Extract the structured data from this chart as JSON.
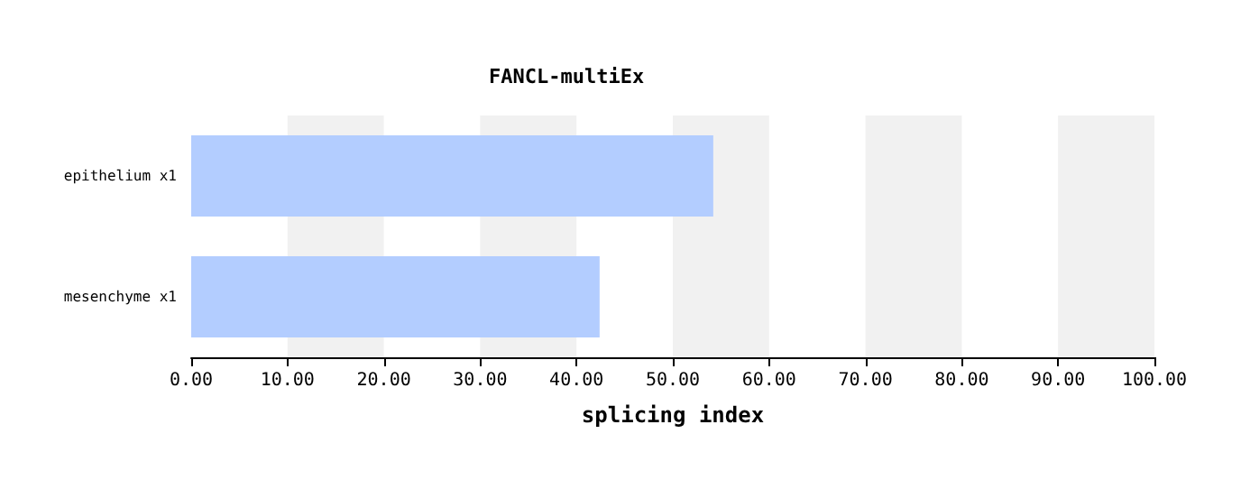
{
  "chart_data": {
    "type": "bar",
    "orientation": "horizontal",
    "title": "FANCL-multiEx",
    "xlabel": "splicing index",
    "categories": [
      "epithelium x1",
      "mesenchyme x1"
    ],
    "values": [
      54.2,
      42.4
    ],
    "color": "#b3cdff",
    "xlim": [
      0,
      100
    ],
    "xticks": [
      {
        "value": 0,
        "label": "0.00"
      },
      {
        "value": 10,
        "label": "10.00"
      },
      {
        "value": 20,
        "label": "20.00"
      },
      {
        "value": 30,
        "label": "30.00"
      },
      {
        "value": 40,
        "label": "40.00"
      },
      {
        "value": 50,
        "label": "50.00"
      },
      {
        "value": 60,
        "label": "60.00"
      },
      {
        "value": 70,
        "label": "70.00"
      },
      {
        "value": 80,
        "label": "80.00"
      },
      {
        "value": 90,
        "label": "90.00"
      },
      {
        "value": 100,
        "label": "100.00"
      }
    ],
    "bands": [
      {
        "axis": "x",
        "from": 10,
        "to": 20,
        "color": "#f1f1f1"
      },
      {
        "axis": "x",
        "from": 30,
        "to": 40,
        "color": "#f1f1f1"
      },
      {
        "axis": "x",
        "from": 50,
        "to": 60,
        "color": "#f1f1f1"
      },
      {
        "axis": "x",
        "from": 70,
        "to": 80,
        "color": "#f1f1f1"
      },
      {
        "axis": "x",
        "from": 90,
        "to": 100,
        "color": "#f1f1f1"
      }
    ]
  }
}
